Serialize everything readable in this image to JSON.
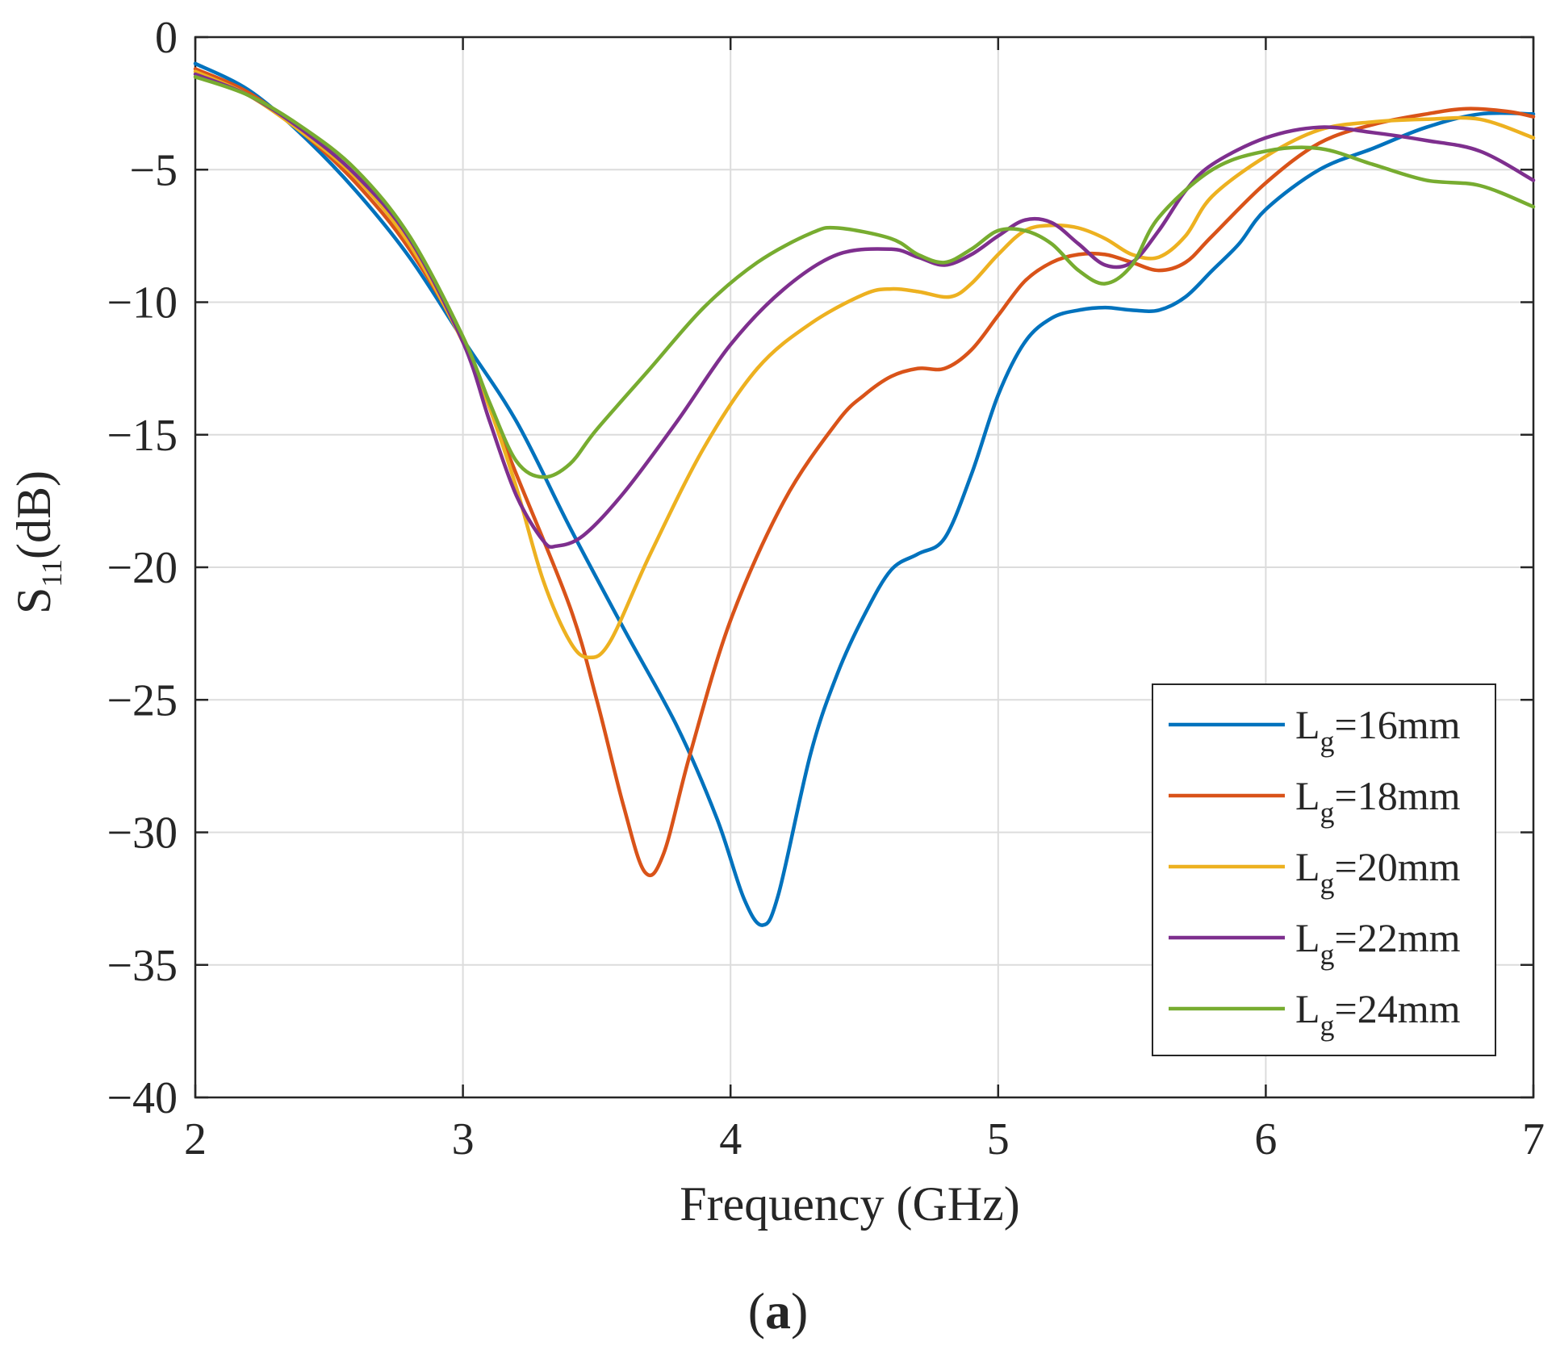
{
  "chart_data": {
    "type": "line",
    "title": "",
    "xlabel": "Frequency (GHz)",
    "ylabel": {
      "main": "S",
      "sub": "11",
      "unit": "(dB)"
    },
    "xlim": [
      2,
      7
    ],
    "ylim": [
      -40,
      0
    ],
    "xticks": [
      2,
      3,
      4,
      5,
      6,
      7
    ],
    "yticks": [
      0,
      -5,
      -10,
      -15,
      -20,
      -25,
      -30,
      -35,
      -40
    ],
    "xtick_labels": [
      "2",
      "3",
      "4",
      "5",
      "6",
      "7"
    ],
    "ytick_labels": [
      "0",
      "−5",
      "−10",
      "−15",
      "−20",
      "−25",
      "−30",
      "−35",
      "−40"
    ],
    "grid": true,
    "legend_position": "bottom-right",
    "caption": {
      "open": "(",
      "letter": "a",
      "close": ")"
    },
    "series": [
      {
        "name": "Lg=16mm",
        "label": {
          "main": "L",
          "sub": "g",
          "rest": "=16mm"
        },
        "color": "#0072BD",
        "points": [
          [
            2.0,
            -1.0
          ],
          [
            2.2,
            -2.0
          ],
          [
            2.4,
            -3.7
          ],
          [
            2.6,
            -5.8
          ],
          [
            2.8,
            -8.3
          ],
          [
            3.0,
            -11.4
          ],
          [
            3.2,
            -14.5
          ],
          [
            3.4,
            -18.5
          ],
          [
            3.6,
            -22.3
          ],
          [
            3.8,
            -26.0
          ],
          [
            3.95,
            -29.5
          ],
          [
            4.05,
            -32.5
          ],
          [
            4.12,
            -33.5
          ],
          [
            4.18,
            -32.3
          ],
          [
            4.3,
            -27.0
          ],
          [
            4.4,
            -24.0
          ],
          [
            4.5,
            -21.8
          ],
          [
            4.6,
            -20.1
          ],
          [
            4.7,
            -19.5
          ],
          [
            4.8,
            -18.9
          ],
          [
            4.9,
            -16.5
          ],
          [
            5.0,
            -13.5
          ],
          [
            5.1,
            -11.5
          ],
          [
            5.2,
            -10.6
          ],
          [
            5.3,
            -10.3
          ],
          [
            5.4,
            -10.2
          ],
          [
            5.5,
            -10.3
          ],
          [
            5.6,
            -10.3
          ],
          [
            5.7,
            -9.8
          ],
          [
            5.8,
            -8.8
          ],
          [
            5.9,
            -7.8
          ],
          [
            6.0,
            -6.5
          ],
          [
            6.2,
            -5.0
          ],
          [
            6.4,
            -4.2
          ],
          [
            6.6,
            -3.4
          ],
          [
            6.8,
            -2.9
          ],
          [
            7.0,
            -2.9
          ]
        ]
      },
      {
        "name": "Lg=18mm",
        "label": {
          "main": "L",
          "sub": "g",
          "rest": "=18mm"
        },
        "color": "#D95319",
        "points": [
          [
            2.0,
            -1.2
          ],
          [
            2.2,
            -2.1
          ],
          [
            2.4,
            -3.6
          ],
          [
            2.6,
            -5.5
          ],
          [
            2.8,
            -8.0
          ],
          [
            3.0,
            -11.5
          ],
          [
            3.2,
            -16.5
          ],
          [
            3.4,
            -21.5
          ],
          [
            3.5,
            -25.0
          ],
          [
            3.6,
            -29.0
          ],
          [
            3.68,
            -31.5
          ],
          [
            3.75,
            -30.8
          ],
          [
            3.85,
            -27.0
          ],
          [
            4.0,
            -22.0
          ],
          [
            4.2,
            -17.5
          ],
          [
            4.4,
            -14.5
          ],
          [
            4.5,
            -13.5
          ],
          [
            4.6,
            -12.8
          ],
          [
            4.7,
            -12.5
          ],
          [
            4.8,
            -12.5
          ],
          [
            4.9,
            -11.8
          ],
          [
            5.0,
            -10.5
          ],
          [
            5.1,
            -9.2
          ],
          [
            5.2,
            -8.5
          ],
          [
            5.3,
            -8.2
          ],
          [
            5.4,
            -8.2
          ],
          [
            5.5,
            -8.5
          ],
          [
            5.6,
            -8.8
          ],
          [
            5.7,
            -8.5
          ],
          [
            5.8,
            -7.5
          ],
          [
            6.0,
            -5.5
          ],
          [
            6.2,
            -4.0
          ],
          [
            6.4,
            -3.3
          ],
          [
            6.6,
            -2.9
          ],
          [
            6.75,
            -2.7
          ],
          [
            6.9,
            -2.8
          ],
          [
            7.0,
            -3.0
          ]
        ]
      },
      {
        "name": "Lg=20mm",
        "label": {
          "main": "L",
          "sub": "g",
          "rest": "=20mm"
        },
        "color": "#EDB120",
        "points": [
          [
            2.0,
            -1.3
          ],
          [
            2.2,
            -2.2
          ],
          [
            2.4,
            -3.6
          ],
          [
            2.6,
            -5.3
          ],
          [
            2.8,
            -7.8
          ],
          [
            3.0,
            -11.5
          ],
          [
            3.1,
            -14.0
          ],
          [
            3.2,
            -17.0
          ],
          [
            3.3,
            -20.5
          ],
          [
            3.4,
            -22.8
          ],
          [
            3.47,
            -23.4
          ],
          [
            3.55,
            -22.8
          ],
          [
            3.7,
            -19.5
          ],
          [
            3.9,
            -15.5
          ],
          [
            4.1,
            -12.5
          ],
          [
            4.3,
            -10.8
          ],
          [
            4.5,
            -9.7
          ],
          [
            4.6,
            -9.5
          ],
          [
            4.7,
            -9.6
          ],
          [
            4.82,
            -9.8
          ],
          [
            4.9,
            -9.3
          ],
          [
            5.0,
            -8.2
          ],
          [
            5.1,
            -7.3
          ],
          [
            5.2,
            -7.1
          ],
          [
            5.3,
            -7.2
          ],
          [
            5.4,
            -7.6
          ],
          [
            5.5,
            -8.2
          ],
          [
            5.6,
            -8.3
          ],
          [
            5.7,
            -7.5
          ],
          [
            5.8,
            -6.0
          ],
          [
            6.0,
            -4.5
          ],
          [
            6.2,
            -3.5
          ],
          [
            6.4,
            -3.2
          ],
          [
            6.6,
            -3.1
          ],
          [
            6.8,
            -3.1
          ],
          [
            7.0,
            -3.8
          ]
        ]
      },
      {
        "name": "Lg=22mm",
        "label": {
          "main": "L",
          "sub": "g",
          "rest": "=22mm"
        },
        "color": "#7E2F8E",
        "points": [
          [
            2.0,
            -1.4
          ],
          [
            2.2,
            -2.2
          ],
          [
            2.4,
            -3.5
          ],
          [
            2.6,
            -5.2
          ],
          [
            2.8,
            -7.6
          ],
          [
            3.0,
            -11.5
          ],
          [
            3.1,
            -14.5
          ],
          [
            3.2,
            -17.3
          ],
          [
            3.3,
            -19.0
          ],
          [
            3.35,
            -19.2
          ],
          [
            3.45,
            -18.8
          ],
          [
            3.6,
            -17.2
          ],
          [
            3.8,
            -14.5
          ],
          [
            4.0,
            -11.6
          ],
          [
            4.2,
            -9.5
          ],
          [
            4.4,
            -8.2
          ],
          [
            4.6,
            -8.0
          ],
          [
            4.7,
            -8.3
          ],
          [
            4.8,
            -8.6
          ],
          [
            4.9,
            -8.2
          ],
          [
            5.0,
            -7.5
          ],
          [
            5.1,
            -6.9
          ],
          [
            5.2,
            -7.0
          ],
          [
            5.3,
            -7.8
          ],
          [
            5.4,
            -8.6
          ],
          [
            5.5,
            -8.5
          ],
          [
            5.6,
            -7.3
          ],
          [
            5.7,
            -5.8
          ],
          [
            5.8,
            -4.8
          ],
          [
            6.0,
            -3.8
          ],
          [
            6.2,
            -3.4
          ],
          [
            6.4,
            -3.6
          ],
          [
            6.6,
            -3.9
          ],
          [
            6.8,
            -4.3
          ],
          [
            7.0,
            -5.4
          ]
        ]
      },
      {
        "name": "Lg=24mm",
        "label": {
          "main": "L",
          "sub": "g",
          "rest": "=24mm"
        },
        "color": "#77AC30",
        "points": [
          [
            2.0,
            -1.5
          ],
          [
            2.2,
            -2.2
          ],
          [
            2.4,
            -3.4
          ],
          [
            2.6,
            -5.0
          ],
          [
            2.8,
            -7.5
          ],
          [
            3.0,
            -11.3
          ],
          [
            3.1,
            -13.8
          ],
          [
            3.2,
            -16.0
          ],
          [
            3.3,
            -16.6
          ],
          [
            3.4,
            -16.1
          ],
          [
            3.5,
            -14.8
          ],
          [
            3.7,
            -12.5
          ],
          [
            3.9,
            -10.2
          ],
          [
            4.1,
            -8.5
          ],
          [
            4.3,
            -7.4
          ],
          [
            4.4,
            -7.2
          ],
          [
            4.6,
            -7.6
          ],
          [
            4.7,
            -8.2
          ],
          [
            4.8,
            -8.5
          ],
          [
            4.9,
            -8.0
          ],
          [
            5.0,
            -7.3
          ],
          [
            5.1,
            -7.3
          ],
          [
            5.2,
            -7.8
          ],
          [
            5.3,
            -8.8
          ],
          [
            5.4,
            -9.3
          ],
          [
            5.5,
            -8.6
          ],
          [
            5.6,
            -6.8
          ],
          [
            5.8,
            -5.0
          ],
          [
            6.0,
            -4.3
          ],
          [
            6.2,
            -4.2
          ],
          [
            6.4,
            -4.8
          ],
          [
            6.6,
            -5.4
          ],
          [
            6.8,
            -5.6
          ],
          [
            7.0,
            -6.4
          ]
        ]
      }
    ]
  }
}
